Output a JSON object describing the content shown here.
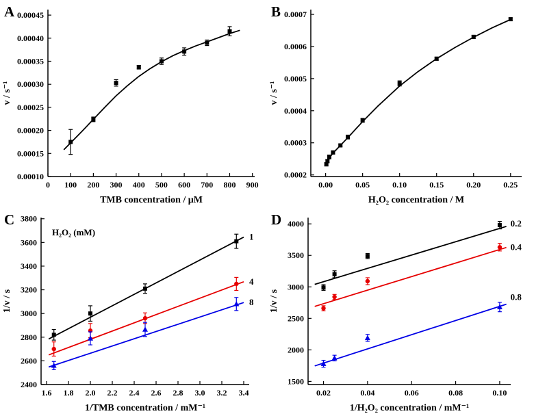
{
  "figure": {
    "background": "#ffffff"
  },
  "colors": {
    "black": "#000000",
    "red": "#e60000",
    "blue": "#0000e6"
  },
  "chart_data": [
    {
      "panel": "A",
      "type": "scatter",
      "xlabel": "TMB concentration / μM",
      "ylabel": "v / s⁻¹",
      "xlim": [
        0,
        910
      ],
      "ylim": [
        0.0001,
        0.000462
      ],
      "xticks": {
        "values": [
          0,
          100,
          200,
          300,
          400,
          500,
          600,
          700,
          800,
          900
        ],
        "labels": [
          "0",
          "100",
          "200",
          "300",
          "400",
          "500",
          "600",
          "700",
          "800",
          "900"
        ]
      },
      "yticks": {
        "values": [
          0.0001,
          0.00015,
          0.0002,
          0.00025,
          0.0003,
          0.00035,
          0.0004,
          0.00045
        ],
        "labels": [
          "0.00010",
          "0.00015",
          "0.00020",
          "0.00025",
          "0.00030",
          "0.00035",
          "0.00040",
          "0.00045"
        ]
      },
      "margins": {
        "l": 70,
        "r": 18,
        "t": 14,
        "b": 46
      },
      "series": [
        {
          "name": "tmb-kinetics",
          "color": "#000000",
          "marker": "square",
          "x": [
            100,
            200,
            300,
            400,
            500,
            600,
            700,
            800
          ],
          "y": [
            0.000175,
            0.000224,
            0.000303,
            0.000337,
            0.00035,
            0.000371,
            0.00039,
            0.000415
          ],
          "yerr": [
            2.7e-05,
            5e-06,
            7e-06,
            4e-06,
            7e-06,
            8e-06,
            6e-06,
            1e-05
          ],
          "fit": {
            "x": [
              70,
              100,
              150,
              200,
              250,
              300,
              350,
              400,
              450,
              500,
              550,
              600,
              650,
              700,
              750,
              800,
              845
            ],
            "y": [
              0.000158,
              0.000173,
              0.000198,
              0.000224,
              0.00025,
              0.000275,
              0.000297,
              0.000317,
              0.000334,
              0.000349,
              0.000362,
              0.000373,
              0.000383,
              0.000392,
              0.000401,
              0.00041,
              0.000417
            ]
          }
        }
      ]
    },
    {
      "panel": "B",
      "type": "scatter",
      "xlabel": "H₂O₂ concentration / M",
      "ylabel": "v / s⁻¹",
      "xlim": [
        -0.02,
        0.265
      ],
      "ylim": [
        0.000195,
        0.000715
      ],
      "xticks": {
        "values": [
          0.0,
          0.05,
          0.1,
          0.15,
          0.2,
          0.25
        ],
        "labels": [
          "0.00",
          "0.05",
          "0.10",
          "0.15",
          "0.20",
          "0.25"
        ]
      },
      "yticks": {
        "values": [
          0.0002,
          0.0003,
          0.0004,
          0.0005,
          0.0006,
          0.0007
        ],
        "labels": [
          "0.0002",
          "0.0003",
          "0.0004",
          "0.0005",
          "0.0006",
          "0.0007"
        ]
      },
      "margins": {
        "l": 64,
        "r": 18,
        "t": 14,
        "b": 46
      },
      "series": [
        {
          "name": "h2o2-kinetics",
          "color": "#000000",
          "marker": "square",
          "x": [
            0.001,
            0.0025,
            0.005,
            0.01,
            0.02,
            0.03,
            0.05,
            0.1,
            0.15,
            0.2,
            0.25
          ],
          "y": [
            0.000233,
            0.000243,
            0.000256,
            0.00027,
            0.000292,
            0.000318,
            0.00037,
            0.000485,
            0.000562,
            0.00063,
            0.000685
          ],
          "yerr": [
            5e-06,
            5e-06,
            6e-06,
            5e-06,
            4e-06,
            6e-06,
            6e-06,
            8e-06,
            5e-06,
            5e-06,
            4e-06
          ],
          "fit": {
            "x": [
              0.001,
              0.005,
              0.01,
              0.02,
              0.03,
              0.04,
              0.05,
              0.07,
              0.1,
              0.125,
              0.15,
              0.175,
              0.2,
              0.225,
              0.25
            ],
            "y": [
              0.000232,
              0.000253,
              0.000268,
              0.000292,
              0.000316,
              0.000341,
              0.000366,
              0.000413,
              0.000477,
              0.000522,
              0.000562,
              0.000597,
              0.000629,
              0.000658,
              0.000684
            ]
          }
        }
      ]
    },
    {
      "panel": "C",
      "type": "scatter",
      "xlabel": "1/TMB concentration / mM⁻¹",
      "ylabel": "1/v / s",
      "legend": {
        "text": "H₂O₂ (mM)",
        "dx": 16,
        "dy": 26
      },
      "xlim": [
        1.55,
        3.45
      ],
      "ylim": [
        2400,
        3810
      ],
      "xticks": {
        "values": [
          1.6,
          1.8,
          2.0,
          2.2,
          2.4,
          2.6,
          2.8,
          3.0,
          3.2,
          3.4
        ],
        "labels": [
          "1.6",
          "1.8",
          "2.0",
          "2.2",
          "2.4",
          "2.6",
          "2.8",
          "3.0",
          "3.2",
          "3.4"
        ]
      },
      "yticks": {
        "values": [
          2400,
          2600,
          2800,
          3000,
          3200,
          3400,
          3600,
          3800
        ],
        "labels": [
          "2400",
          "2600",
          "2800",
          "3000",
          "3200",
          "3400",
          "3600",
          "3800"
        ]
      },
      "margins": {
        "l": 60,
        "r": 26,
        "t": 14,
        "b": 46
      },
      "series": [
        {
          "name": "h2o2-1mM",
          "color": "#000000",
          "marker": "square",
          "x": [
            1.667,
            2.0,
            2.5,
            3.333
          ],
          "y": [
            2820,
            3000,
            3210,
            3610
          ],
          "yerr": [
            45,
            65,
            40,
            60
          ],
          "fit": {
            "x": [
              1.62,
              3.4
            ],
            "y": [
              2785,
              3645
            ]
          },
          "end_label": {
            "text": "1",
            "dx": 8,
            "dy": 0
          }
        },
        {
          "name": "h2o2-4mM",
          "color": "#e60000",
          "marker": "circle",
          "x": [
            1.667,
            2.0,
            2.5,
            3.333
          ],
          "y": [
            2700,
            2855,
            2960,
            3250
          ],
          "yerr": [
            60,
            60,
            45,
            55
          ],
          "fit": {
            "x": [
              1.62,
              3.4
            ],
            "y": [
              2650,
              3268
            ]
          },
          "end_label": {
            "text": "4",
            "dx": 8,
            "dy": 0
          }
        },
        {
          "name": "h2o2-8mM",
          "color": "#0000e6",
          "marker": "triangle",
          "x": [
            1.667,
            2.0,
            2.5,
            3.333
          ],
          "y": [
            2560,
            2790,
            2865,
            3080
          ],
          "yerr": [
            35,
            55,
            60,
            55
          ],
          "fit": {
            "x": [
              1.62,
              3.4
            ],
            "y": [
              2548,
              3092
            ]
          },
          "end_label": {
            "text": "8",
            "dx": 8,
            "dy": 0
          }
        }
      ]
    },
    {
      "panel": "D",
      "type": "scatter",
      "xlabel": "1/H₂O₂ concentration / mM⁻¹",
      "ylabel": "1/v / s",
      "xlim": [
        0.013,
        0.105
      ],
      "ylim": [
        1450,
        4100
      ],
      "xticks": {
        "values": [
          0.02,
          0.04,
          0.06,
          0.08,
          0.1
        ],
        "labels": [
          "0.02",
          "0.04",
          "0.06",
          "0.08",
          "0.10"
        ]
      },
      "yticks": {
        "values": [
          1500,
          2000,
          2500,
          3000,
          3500,
          4000
        ],
        "labels": [
          "1500",
          "2000",
          "2500",
          "3000",
          "3500",
          "4000"
        ]
      },
      "margins": {
        "l": 60,
        "r": 34,
        "t": 14,
        "b": 46
      },
      "series": [
        {
          "name": "tmb-0p2mM",
          "color": "#000000",
          "marker": "square",
          "x": [
            0.02,
            0.025,
            0.04,
            0.1
          ],
          "y": [
            2990,
            3200,
            3490,
            3980
          ],
          "yerr": [
            45,
            55,
            40,
            60
          ],
          "fit": {
            "x": [
              0.016,
              0.103
            ],
            "y": [
              3040,
              3960
            ]
          },
          "end_label": {
            "text": "0.2",
            "dx": 6,
            "dy": -4
          }
        },
        {
          "name": "tmb-0p4mM",
          "color": "#e60000",
          "marker": "circle",
          "x": [
            0.02,
            0.025,
            0.04,
            0.1
          ],
          "y": [
            2660,
            2840,
            3090,
            3630
          ],
          "yerr": [
            40,
            40,
            55,
            60
          ],
          "fit": {
            "x": [
              0.016,
              0.103
            ],
            "y": [
              2690,
              3625
            ]
          },
          "end_label": {
            "text": "0.4",
            "dx": 6,
            "dy": 0
          }
        },
        {
          "name": "tmb-0p8mM",
          "color": "#0000e6",
          "marker": "triangle",
          "x": [
            0.02,
            0.025,
            0.04,
            0.1
          ],
          "y": [
            1780,
            1870,
            2190,
            2680
          ],
          "yerr": [
            55,
            45,
            55,
            75
          ],
          "fit": {
            "x": [
              0.016,
              0.103
            ],
            "y": [
              1745,
              2725
            ]
          },
          "end_label": {
            "text": "0.8",
            "dx": 6,
            "dy": -10
          }
        }
      ]
    }
  ]
}
